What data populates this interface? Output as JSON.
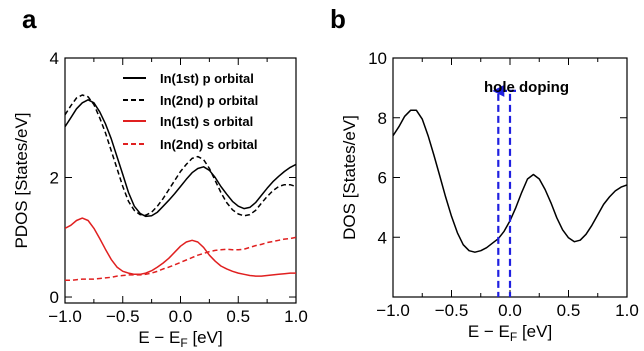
{
  "chart_data": [
    {
      "panel": "a",
      "type": "line",
      "xlabel": "E − E_F [eV]",
      "ylabel": "PDOS [States/eV]",
      "xlim": [
        -1.0,
        1.0
      ],
      "ylim": [
        -0.1,
        4.0
      ],
      "xticks": [
        "−1.0",
        "−0.5",
        "0.0",
        "0.5",
        "1.0"
      ],
      "yticks": [
        "0",
        "2",
        "4"
      ],
      "legend_position": "top-right",
      "series": [
        {
          "name": "In(1st)  p orbital",
          "color": "#000000",
          "dash": "solid",
          "x": [
            -1.0,
            -0.95,
            -0.9,
            -0.85,
            -0.8,
            -0.75,
            -0.7,
            -0.65,
            -0.6,
            -0.55,
            -0.5,
            -0.45,
            -0.4,
            -0.35,
            -0.3,
            -0.25,
            -0.2,
            -0.15,
            -0.1,
            -0.05,
            0.0,
            0.05,
            0.1,
            0.15,
            0.2,
            0.25,
            0.3,
            0.35,
            0.4,
            0.45,
            0.5,
            0.55,
            0.6,
            0.65,
            0.7,
            0.75,
            0.8,
            0.85,
            0.9,
            0.95,
            1.0
          ],
          "y": [
            2.85,
            3.0,
            3.15,
            3.25,
            3.3,
            3.25,
            3.1,
            2.9,
            2.65,
            2.35,
            2.05,
            1.75,
            1.52,
            1.4,
            1.35,
            1.36,
            1.42,
            1.52,
            1.62,
            1.73,
            1.85,
            1.97,
            2.08,
            2.15,
            2.18,
            2.12,
            2.0,
            1.85,
            1.72,
            1.6,
            1.52,
            1.48,
            1.5,
            1.58,
            1.7,
            1.82,
            1.93,
            2.02,
            2.1,
            2.17,
            2.22
          ]
        },
        {
          "name": "In(2nd) p orbital",
          "color": "#000000",
          "dash": "dashed",
          "x": [
            -1.0,
            -0.95,
            -0.9,
            -0.85,
            -0.8,
            -0.75,
            -0.7,
            -0.65,
            -0.6,
            -0.55,
            -0.5,
            -0.45,
            -0.4,
            -0.35,
            -0.3,
            -0.25,
            -0.2,
            -0.15,
            -0.1,
            -0.05,
            0.0,
            0.05,
            0.1,
            0.15,
            0.2,
            0.25,
            0.3,
            0.35,
            0.4,
            0.45,
            0.5,
            0.55,
            0.6,
            0.65,
            0.7,
            0.75,
            0.8,
            0.85,
            0.9,
            0.95,
            1.0
          ],
          "y": [
            3.05,
            3.2,
            3.33,
            3.38,
            3.35,
            3.22,
            3.0,
            2.75,
            2.45,
            2.15,
            1.85,
            1.6,
            1.45,
            1.38,
            1.37,
            1.42,
            1.52,
            1.65,
            1.8,
            1.95,
            2.1,
            2.22,
            2.32,
            2.35,
            2.3,
            2.15,
            1.95,
            1.75,
            1.58,
            1.46,
            1.39,
            1.36,
            1.38,
            1.45,
            1.57,
            1.68,
            1.78,
            1.85,
            1.88,
            1.88,
            1.85
          ]
        },
        {
          "name": "In(1st)  s orbital",
          "color": "#e02020",
          "dash": "solid",
          "x": [
            -1.0,
            -0.95,
            -0.9,
            -0.85,
            -0.8,
            -0.75,
            -0.7,
            -0.65,
            -0.6,
            -0.55,
            -0.5,
            -0.45,
            -0.4,
            -0.35,
            -0.3,
            -0.25,
            -0.2,
            -0.15,
            -0.1,
            -0.05,
            0.0,
            0.05,
            0.1,
            0.15,
            0.2,
            0.25,
            0.3,
            0.35,
            0.4,
            0.45,
            0.5,
            0.55,
            0.6,
            0.65,
            0.7,
            0.75,
            0.8,
            0.85,
            0.9,
            0.95,
            1.0
          ],
          "y": [
            1.15,
            1.2,
            1.28,
            1.32,
            1.28,
            1.15,
            0.98,
            0.8,
            0.63,
            0.5,
            0.43,
            0.4,
            0.38,
            0.38,
            0.4,
            0.44,
            0.5,
            0.57,
            0.65,
            0.75,
            0.85,
            0.92,
            0.95,
            0.92,
            0.83,
            0.7,
            0.6,
            0.52,
            0.47,
            0.43,
            0.4,
            0.38,
            0.36,
            0.35,
            0.35,
            0.36,
            0.37,
            0.38,
            0.39,
            0.4,
            0.4
          ]
        },
        {
          "name": "In(2nd) s orbital",
          "color": "#e02020",
          "dash": "dashed",
          "x": [
            -1.0,
            -0.95,
            -0.9,
            -0.85,
            -0.8,
            -0.75,
            -0.7,
            -0.65,
            -0.6,
            -0.55,
            -0.5,
            -0.45,
            -0.4,
            -0.35,
            -0.3,
            -0.25,
            -0.2,
            -0.15,
            -0.1,
            -0.05,
            0.0,
            0.05,
            0.1,
            0.15,
            0.2,
            0.25,
            0.3,
            0.35,
            0.4,
            0.45,
            0.5,
            0.55,
            0.6,
            0.65,
            0.7,
            0.75,
            0.8,
            0.85,
            0.9,
            0.95,
            1.0
          ],
          "y": [
            0.28,
            0.28,
            0.29,
            0.3,
            0.3,
            0.3,
            0.31,
            0.32,
            0.33,
            0.35,
            0.36,
            0.37,
            0.37,
            0.37,
            0.38,
            0.4,
            0.43,
            0.47,
            0.5,
            0.54,
            0.58,
            0.62,
            0.66,
            0.7,
            0.73,
            0.76,
            0.78,
            0.79,
            0.8,
            0.79,
            0.79,
            0.8,
            0.83,
            0.86,
            0.88,
            0.91,
            0.93,
            0.95,
            0.97,
            0.98,
            1.0
          ]
        }
      ]
    },
    {
      "panel": "b",
      "type": "line",
      "xlabel": "E − E_F [eV]",
      "ylabel": "DOS [States/eV]",
      "xlim": [
        -1.0,
        1.0
      ],
      "ylim": [
        2.0,
        10.0
      ],
      "xticks": [
        "−1.0",
        "−0.5",
        "0.0",
        "0.5",
        "1.0"
      ],
      "yticks": [
        "4",
        "6",
        "8",
        "10"
      ],
      "annotation": "hole doping",
      "doping_lines_x": [
        -0.1,
        0.0
      ],
      "arrow": {
        "from_x": 0.0,
        "to_x": -0.1,
        "y": 8.9,
        "color": "#1f1fe0"
      },
      "series": [
        {
          "color": "#000000",
          "dash": "solid",
          "x": [
            -1.0,
            -0.95,
            -0.9,
            -0.85,
            -0.8,
            -0.75,
            -0.7,
            -0.65,
            -0.6,
            -0.55,
            -0.5,
            -0.45,
            -0.4,
            -0.35,
            -0.3,
            -0.25,
            -0.2,
            -0.15,
            -0.1,
            -0.05,
            0.0,
            0.05,
            0.1,
            0.15,
            0.2,
            0.25,
            0.3,
            0.35,
            0.4,
            0.45,
            0.5,
            0.55,
            0.6,
            0.65,
            0.7,
            0.75,
            0.8,
            0.85,
            0.9,
            0.95,
            1.0
          ],
          "y": [
            7.4,
            7.7,
            8.05,
            8.25,
            8.25,
            7.95,
            7.4,
            6.75,
            6.05,
            5.35,
            4.7,
            4.15,
            3.75,
            3.55,
            3.5,
            3.55,
            3.65,
            3.8,
            3.95,
            4.2,
            4.55,
            5.0,
            5.5,
            5.95,
            6.1,
            5.95,
            5.6,
            5.15,
            4.65,
            4.25,
            3.98,
            3.85,
            3.9,
            4.1,
            4.4,
            4.75,
            5.1,
            5.35,
            5.55,
            5.68,
            5.75
          ]
        }
      ]
    }
  ]
}
